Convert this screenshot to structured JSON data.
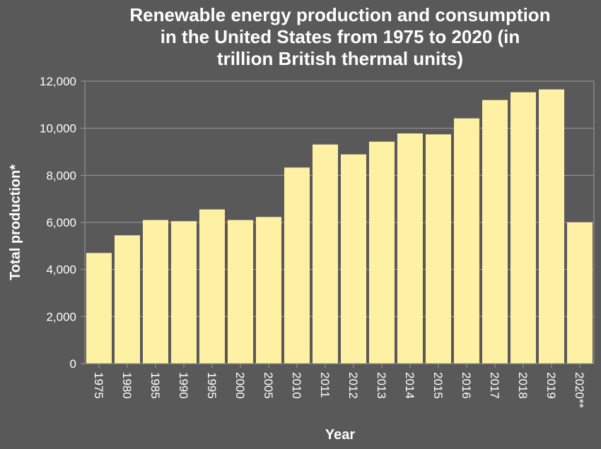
{
  "chart_data": {
    "type": "bar",
    "title_lines": [
      "Renewable energy production and consumption",
      "in the United States from 1975 to 2020 (in",
      "trillion British thermal units)"
    ],
    "xlabel": "Year",
    "ylabel": "Total production*",
    "categories": [
      "1975",
      "1980",
      "1985",
      "1990",
      "1995",
      "2000",
      "2005",
      "2010",
      "2011",
      "2012",
      "2013",
      "2014",
      "2015",
      "2016",
      "2017",
      "2018",
      "2019",
      "2020**"
    ],
    "values": [
      4700,
      5450,
      6100,
      6050,
      6550,
      6100,
      6230,
      8330,
      9310,
      8890,
      9430,
      9780,
      9740,
      10420,
      11200,
      11530,
      11650,
      6000
    ],
    "ylim": [
      0,
      12000
    ],
    "yticks": [
      0,
      2000,
      4000,
      6000,
      8000,
      10000,
      12000
    ],
    "ytick_labels": [
      "0",
      "2,000",
      "4,000",
      "6,000",
      "8,000",
      "10,000",
      "12,000"
    ],
    "grid": true,
    "colors": {
      "bar": "#fff1a4",
      "background": "#595959",
      "grid": "#9a9a9a",
      "text": "#ffffff"
    }
  }
}
